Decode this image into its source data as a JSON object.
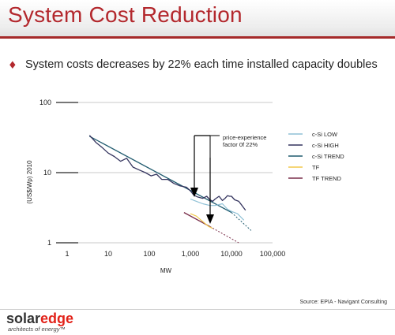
{
  "slide": {
    "title": "System Cost Reduction",
    "bullet_marker": "♦",
    "bullet_text": "System costs decreases by 22% each time installed capacity doubles",
    "source": "Source: EPIA - Navigant Consulting",
    "logo_solar": "solar",
    "logo_edge": "edge",
    "logo_tagline": "architects of energy™"
  },
  "colors": {
    "title": "#b3282d",
    "c_si_low": "#8fc1d6",
    "c_si_high": "#34345e",
    "c_si_trend": "#1f5a6e",
    "tf": "#f2c94c",
    "tf_trend": "#7a2e4a"
  },
  "chart_data": {
    "type": "line",
    "xlabel": "MW",
    "ylabel": "(US$/Wp) 2010",
    "xscale": "log",
    "yscale": "log",
    "xlim": [
      1,
      100000
    ],
    "ylim": [
      1,
      100
    ],
    "x_ticks": [
      "1",
      "10",
      "100",
      "1,000",
      "10,000",
      "100,000"
    ],
    "y_ticks": [
      "1",
      "10",
      "100"
    ],
    "grid": "horizontal",
    "legend_position": "right",
    "annotation": [
      "price-experience",
      "factor 0f 22%"
    ],
    "series": [
      {
        "name": "c-Si LOW",
        "x": [
          1000,
          1400,
          2000,
          3000,
          4000,
          6000,
          8000,
          10000,
          14000,
          20000
        ],
        "y": [
          4.2,
          3.9,
          3.6,
          3.4,
          3.4,
          3.6,
          3.0,
          2.8,
          2.6,
          2.1
        ]
      },
      {
        "name": "c-Si HIGH",
        "x": [
          3.5,
          5,
          7,
          10,
          14,
          20,
          28,
          40,
          55,
          80,
          110,
          150,
          200,
          280,
          400,
          550,
          800,
          1000,
          1200,
          1500,
          2000,
          2500,
          3000,
          3500,
          4000,
          5000,
          6000,
          7000,
          8000,
          9000,
          10000,
          12000,
          15000,
          18000,
          22000
        ],
        "y": [
          34,
          27,
          23,
          19,
          17,
          14.5,
          16,
          12,
          11,
          10,
          9,
          9.5,
          8,
          8,
          7,
          6.5,
          6.2,
          5.5,
          4.8,
          4.5,
          4.3,
          4.6,
          4.1,
          3.9,
          4.2,
          4.6,
          4.0,
          4.3,
          4.7,
          4.6,
          4.6,
          4.1,
          3.9,
          3.4,
          2.9
        ]
      },
      {
        "name": "c-Si TREND",
        "x": [
          3.5,
          10000
        ],
        "y": [
          33,
          2.7
        ]
      },
      {
        "name": "TF",
        "x": [
          1000,
          1400,
          2000,
          2800,
          3500
        ],
        "y": [
          2.6,
          2.4,
          2.0,
          1.7,
          1.6
        ]
      },
      {
        "name": "TF TREND",
        "x": [
          700,
          3000
        ],
        "y": [
          2.7,
          1.7
        ]
      }
    ],
    "trend_extensions": [
      {
        "series": "c-Si TREND",
        "x": [
          10000,
          30000
        ],
        "y": [
          2.7,
          1.5
        ]
      },
      {
        "series": "TF TREND",
        "x": [
          3000,
          15000
        ],
        "y": [
          1.7,
          1.0
        ]
      }
    ]
  }
}
